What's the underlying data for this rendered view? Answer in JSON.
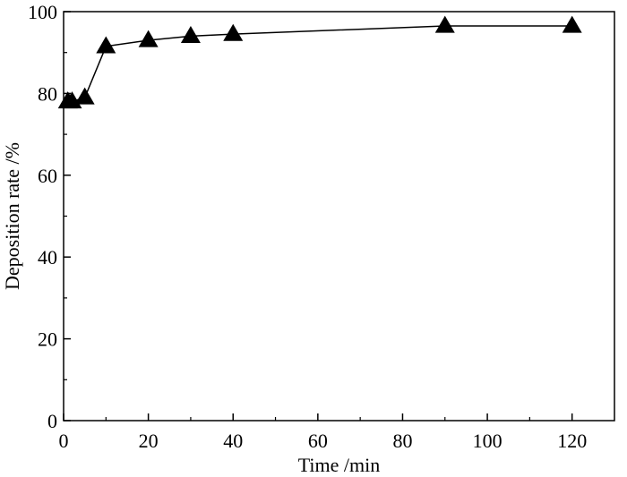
{
  "chart_data": {
    "type": "line",
    "title": "",
    "xlabel": "Time /min",
    "ylabel": "Deposition rate /%",
    "xlim": [
      0,
      130
    ],
    "ylim": [
      0,
      100
    ],
    "x_ticks": [
      0,
      20,
      40,
      60,
      80,
      100,
      120
    ],
    "y_ticks": [
      0,
      20,
      40,
      60,
      80,
      100
    ],
    "grid": false,
    "legend": "none",
    "marker": "filled-triangle",
    "series": [
      {
        "color": "#000000",
        "x": [
          1,
          2,
          5,
          10,
          20,
          30,
          40,
          90,
          120
        ],
        "y": [
          78,
          78,
          79,
          91.5,
          93,
          94,
          94.5,
          96.5,
          96.5
        ]
      }
    ]
  }
}
